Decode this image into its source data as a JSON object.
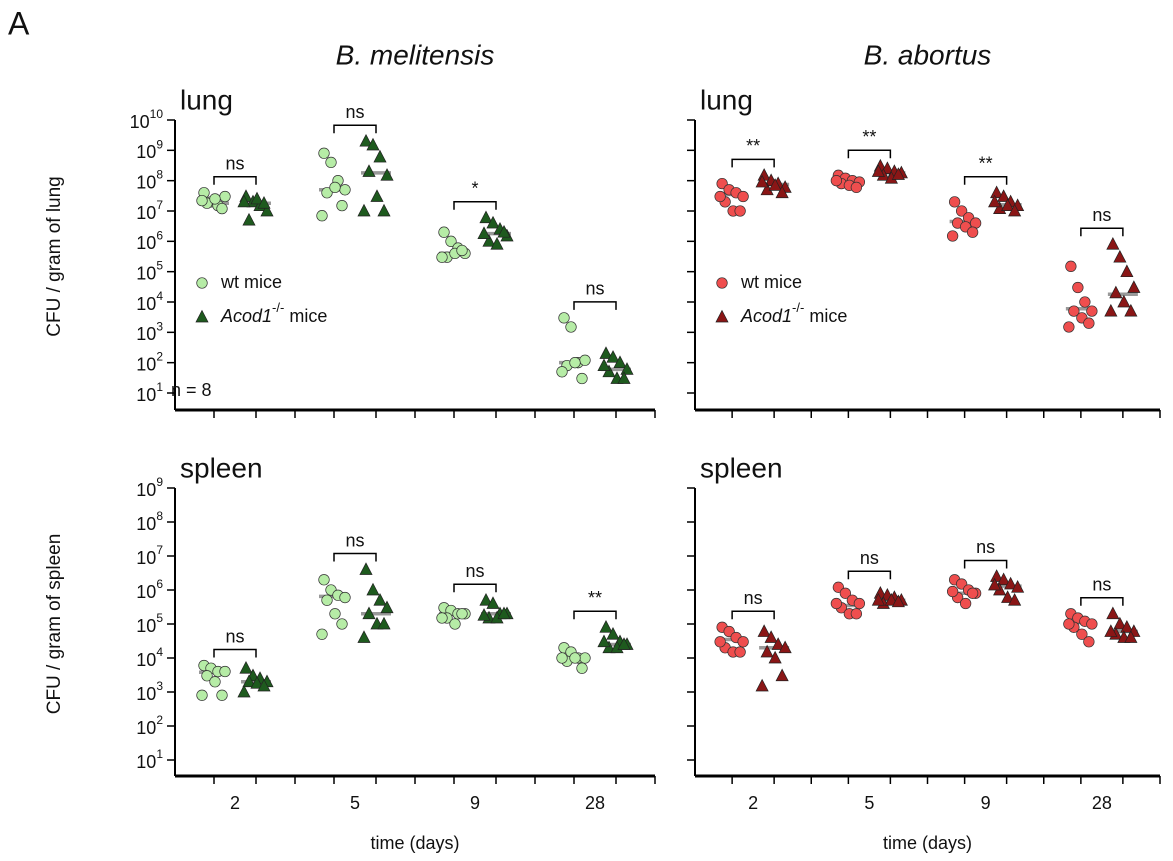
{
  "chart_data": [
    {
      "type": "scatter",
      "panel_label": "A",
      "title": "B. melitensis",
      "subtitle": "lung",
      "y_label": "CFU / gram of lung",
      "annotation": "n = 8",
      "log_scale": true,
      "categories": [
        null,
        null,
        null,
        null
      ],
      "ylim": [
        10,
        10000000000.0
      ],
      "yticks": [
        {
          "value": 10,
          "label": "10",
          "sup": "1"
        },
        {
          "value": 100,
          "label": "10",
          "sup": "2"
        },
        {
          "value": 1000,
          "label": "10",
          "sup": "3"
        },
        {
          "value": 10000.0,
          "label": "10",
          "sup": "4"
        },
        {
          "value": 100000.0,
          "label": "10",
          "sup": "5"
        },
        {
          "value": 1000000.0,
          "label": "10",
          "sup": "6"
        },
        {
          "value": 10000000.0,
          "label": "10",
          "sup": "7"
        },
        {
          "value": 100000000.0,
          "label": "10",
          "sup": "8"
        },
        {
          "value": 1000000000.0,
          "label": "10",
          "sup": "9"
        },
        {
          "value": 10000000000.0,
          "label": "10",
          "sup": "10"
        }
      ],
      "series": [
        {
          "name": "wt mice",
          "marker": "circle",
          "color": "#b6eca6",
          "values": [
            [
              40000000.0,
              20000000.0,
              15000000.0,
              30000000.0,
              18000000.0,
              25000000.0,
              12000000.0,
              22000000.0
            ],
            [
              800000000.0,
              400000000.0,
              100000000.0,
              50000000.0,
              40000000.0,
              60000000.0,
              15000000.0,
              7000000.0
            ],
            [
              2000000.0,
              1000000.0,
              600000.0,
              400000.0,
              300000.0,
              400000.0,
              500000.0,
              300000.0
            ],
            [
              3000.0,
              1500.0,
              100,
              120,
              80,
              100,
              30,
              50
            ]
          ],
          "medians": [
            18000000.0,
            50000000.0,
            400000.0,
            100
          ]
        },
        {
          "name": "Acod1-/- mice",
          "marker": "triangle",
          "color": "#1e5a1e",
          "values": [
            [
              30000000.0,
              20000000.0,
              15000000.0,
              10000000.0,
              5000000.0,
              25000000.0,
              18000000.0,
              20000000.0
            ],
            [
              2000000000.0,
              1500000000.0,
              600000000.0,
              150000000.0,
              200000000.0,
              30000000.0,
              10000000.0,
              10000000.0
            ],
            [
              6000000.0,
              4000000.0,
              2500000.0,
              1500000.0,
              1000000.0,
              800000.0,
              2000000.0,
              1800000.0
            ],
            [
              200,
              150,
              100,
              60,
              50,
              30,
              30,
              80
            ]
          ],
          "medians": [
            18000000.0,
            180000000.0,
            1800000.0,
            60
          ]
        }
      ],
      "significance": [
        "ns",
        "ns",
        "*",
        "ns"
      ]
    },
    {
      "type": "scatter",
      "title": "B. abortus",
      "subtitle": "lung",
      "log_scale": true,
      "categories": [
        null,
        null,
        null,
        null
      ],
      "ylim": [
        10,
        10000000000.0
      ],
      "series": [
        {
          "name": "wt mice",
          "marker": "circle",
          "color": "#ef4e4e",
          "values": [
            [
              80000000.0,
              50000000.0,
              40000000.0,
              30000000.0,
              20000000.0,
              10000000.0,
              10000000.0,
              30000000.0
            ],
            [
              150000000.0,
              120000000.0,
              100000000.0,
              90000000.0,
              80000000.0,
              70000000.0,
              60000000.0,
              100000000.0
            ],
            [
              20000000.0,
              10000000.0,
              6000000.0,
              4000000.0,
              4000000.0,
              3000000.0,
              2000000.0,
              1500000.0
            ],
            [
              150000.0,
              30000.0,
              10000.0,
              5000.0,
              5000.0,
              3000.0,
              2000.0,
              1500.0
            ]
          ],
          "medians": [
            35000000.0,
            100000000.0,
            4500000.0,
            6000.0
          ]
        },
        {
          "name": "Acod1-/- mice",
          "marker": "triangle",
          "color": "#8a1616",
          "values": [
            [
              150000000.0,
              100000000.0,
              80000000.0,
              60000000.0,
              50000000.0,
              70000000.0,
              40000000.0,
              90000000.0
            ],
            [
              300000000.0,
              250000000.0,
              200000000.0,
              180000000.0,
              150000000.0,
              120000000.0,
              160000000.0,
              200000000.0
            ],
            [
              40000000.0,
              30000000.0,
              20000000.0,
              15000000.0,
              12000000.0,
              15000000.0,
              10000000.0,
              20000000.0
            ],
            [
              800000.0,
              300000.0,
              100000.0,
              30000.0,
              20000.0,
              10000.0,
              5000.0,
              5000.0
            ]
          ],
          "medians": [
            75000000.0,
            180000000.0,
            16000000.0,
            18000.0
          ]
        }
      ],
      "significance": [
        "**",
        "**",
        "**",
        "ns"
      ]
    },
    {
      "type": "scatter",
      "subtitle": "spleen",
      "y_label": "CFU / gram of spleen",
      "x_label": "time (days)",
      "log_scale": true,
      "categories": [
        "2",
        "5",
        "9",
        "28"
      ],
      "ylim": [
        10,
        1000000000.0
      ],
      "yticks": [
        {
          "value": 10,
          "label": "10",
          "sup": "1"
        },
        {
          "value": 100,
          "label": "10",
          "sup": "2"
        },
        {
          "value": 1000,
          "label": "10",
          "sup": "3"
        },
        {
          "value": 10000.0,
          "label": "10",
          "sup": "4"
        },
        {
          "value": 100000.0,
          "label": "10",
          "sup": "5"
        },
        {
          "value": 1000000.0,
          "label": "10",
          "sup": "6"
        },
        {
          "value": 10000000.0,
          "label": "10",
          "sup": "7"
        },
        {
          "value": 100000000.0,
          "label": "10",
          "sup": "8"
        },
        {
          "value": 1000000000.0,
          "label": "10",
          "sup": "9"
        }
      ],
      "series": [
        {
          "marker": "circle",
          "color": "#b6eca6",
          "values": [
            [
              6000.0,
              5000.0,
              4000.0,
              4000.0,
              3000.0,
              2000.0,
              800,
              800
            ],
            [
              2000000.0,
              1000000.0,
              700000.0,
              600000.0,
              500000.0,
              200000.0,
              100000.0,
              50000.0
            ],
            [
              300000.0,
              250000.0,
              200000.0,
              200000.0,
              150000.0,
              100000.0,
              200000.0,
              150000.0
            ],
            [
              20000.0,
              15000.0,
              10000.0,
              10000.0,
              8000.0,
              10000.0,
              5000.0,
              10000.0
            ]
          ],
          "medians": [
            3800.0,
            650000.0,
            200000.0,
            10000.0
          ]
        },
        {
          "marker": "triangle",
          "color": "#1e5a1e",
          "values": [
            [
              5000.0,
              3000.0,
              2500.0,
              2000.0,
              2000.0,
              1800.0,
              1500.0,
              1000.0
            ],
            [
              4000000.0,
              1000000.0,
              500000.0,
              300000.0,
              200000.0,
              100000.0,
              100000.0,
              40000.0
            ],
            [
              500000.0,
              400000.0,
              200000.0,
              200000.0,
              150000.0,
              150000.0,
              200000.0,
              180000.0
            ],
            [
              80000.0,
              50000.0,
              30000.0,
              25000.0,
              20000.0,
              20000.0,
              25000.0,
              30000.0
            ]
          ],
          "medians": [
            2000.0,
            200000.0,
            200000.0,
            25000.0
          ]
        }
      ],
      "significance": [
        "ns",
        "ns",
        "ns",
        "**"
      ]
    },
    {
      "type": "scatter",
      "subtitle": "spleen",
      "x_label": "time (days)",
      "log_scale": true,
      "categories": [
        "2",
        "5",
        "9",
        "28"
      ],
      "ylim": [
        10,
        1000000000.0
      ],
      "series": [
        {
          "marker": "circle",
          "color": "#ef4e4e",
          "values": [
            [
              80000.0,
              60000.0,
              40000.0,
              30000.0,
              20000.0,
              15000.0,
              15000.0,
              30000.0
            ],
            [
              1200000.0,
              800000.0,
              500000.0,
              400000.0,
              300000.0,
              200000.0,
              200000.0,
              400000.0
            ],
            [
              2000000.0,
              1500000.0,
              1000000.0,
              800000.0,
              600000.0,
              400000.0,
              800000.0,
              900000.0
            ],
            [
              200000.0,
              150000.0,
              120000.0,
              100000.0,
              80000.0,
              50000.0,
              30000.0,
              100000.0
            ]
          ],
          "medians": [
            35000.0,
            350000.0,
            800000.0,
            110000.0
          ]
        },
        {
          "marker": "triangle",
          "color": "#8a1616",
          "values": [
            [
              60000.0,
              40000.0,
              25000.0,
              20000.0,
              15000.0,
              10000.0,
              3000.0,
              1500.0
            ],
            [
              800000.0,
              700000.0,
              600000.0,
              500000.0,
              400000.0,
              500000.0,
              450000.0,
              500000.0
            ],
            [
              2500000.0,
              2000000.0,
              1500000.0,
              1200000.0,
              1000000.0,
              600000.0,
              500000.0,
              1400000.0
            ],
            [
              200000.0,
              100000.0,
              80000.0,
              60000.0,
              50000.0,
              40000.0,
              40000.0,
              60000.0
            ]
          ],
          "medians": [
            20000.0,
            500000.0,
            1300000.0,
            60000.0
          ]
        }
      ],
      "significance": [
        "ns",
        "ns",
        "ns",
        "ns"
      ]
    }
  ]
}
